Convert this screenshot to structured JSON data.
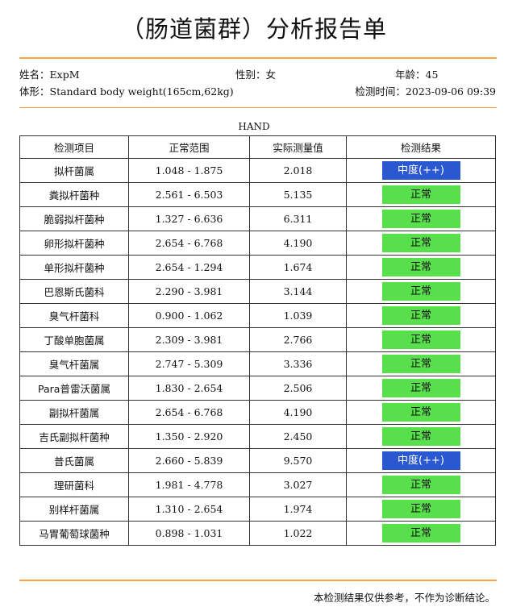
{
  "report": {
    "title": "（肠道菌群）分析报告单"
  },
  "patient": {
    "name_label": "姓名：",
    "name_value": "ExpM",
    "gender_label": "性别：",
    "gender_value": "女",
    "age_label": "年龄：",
    "age_value": "45",
    "body_label": "体形：",
    "body_value": "Standard body weight(165cm,62kg)",
    "time_label": "检测时间：",
    "time_value": "2023-09-06 09:39"
  },
  "sample_label": "HAND",
  "table": {
    "headers": [
      "检测项目",
      "正常范围",
      "实际测量值",
      "检测结果"
    ],
    "rows": [
      {
        "item": "拟杆菌属",
        "range": "1.048 - 1.875",
        "value": "2.018",
        "result": "中度(++)",
        "status": "high"
      },
      {
        "item": "粪拟杆菌种",
        "range": "2.561 - 6.503",
        "value": "5.135",
        "result": "正常",
        "status": "normal"
      },
      {
        "item": "脆弱拟杆菌种",
        "range": "1.327 - 6.636",
        "value": "6.311",
        "result": "正常",
        "status": "normal"
      },
      {
        "item": "卵形拟杆菌种",
        "range": "2.654 - 6.768",
        "value": "4.190",
        "result": "正常",
        "status": "normal"
      },
      {
        "item": "单形拟杆菌种",
        "range": "2.654 - 1.294",
        "value": "1.674",
        "result": "正常",
        "status": "normal"
      },
      {
        "item": "巴恩斯氏菌科",
        "range": "2.290 - 3.981",
        "value": "3.144",
        "result": "正常",
        "status": "normal"
      },
      {
        "item": "臭气杆菌科",
        "range": "0.900 - 1.062",
        "value": "1.039",
        "result": "正常",
        "status": "normal"
      },
      {
        "item": "丁酸单胞菌属",
        "range": "2.309 - 3.981",
        "value": "2.766",
        "result": "正常",
        "status": "normal"
      },
      {
        "item": "臭气杆菌属",
        "range": "2.747 - 5.309",
        "value": "3.336",
        "result": "正常",
        "status": "normal"
      },
      {
        "item": "Para普雷沃菌属",
        "range": "1.830 - 2.654",
        "value": "2.506",
        "result": "正常",
        "status": "normal"
      },
      {
        "item": "副拟杆菌属",
        "range": "2.654 - 6.768",
        "value": "4.190",
        "result": "正常",
        "status": "normal"
      },
      {
        "item": "吉氏副拟杆菌种",
        "range": "1.350 - 2.920",
        "value": "2.450",
        "result": "正常",
        "status": "normal"
      },
      {
        "item": "普氏菌属",
        "range": "2.660 - 5.839",
        "value": "9.570",
        "result": "中度(++)",
        "status": "high"
      },
      {
        "item": "理研菌科",
        "range": "1.981 - 4.778",
        "value": "3.027",
        "result": "正常",
        "status": "normal"
      },
      {
        "item": "别样杆菌属",
        "range": "1.310 - 2.654",
        "value": "1.974",
        "result": "正常",
        "status": "normal"
      },
      {
        "item": "马胃葡萄球菌种",
        "range": "0.898 - 1.031",
        "value": "1.022",
        "result": "正常",
        "status": "normal"
      }
    ]
  },
  "footer": {
    "note": "本检测结果仅供参考，不作为诊断结论。"
  },
  "colors": {
    "accent_rule": "#f5a243",
    "normal_badge": "#57e04b",
    "high_badge": "#2a58d0"
  }
}
